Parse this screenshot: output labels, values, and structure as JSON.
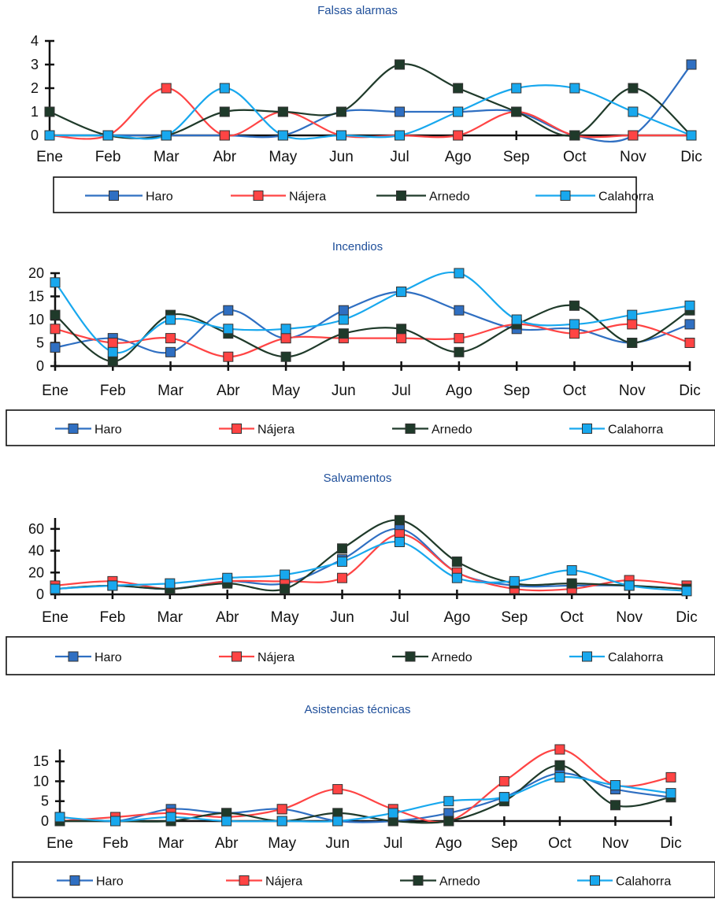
{
  "months": [
    "Ene",
    "Feb",
    "Mar",
    "Abr",
    "May",
    "Jun",
    "Jul",
    "Ago",
    "Sep",
    "Oct",
    "Nov",
    "Dic"
  ],
  "legend": [
    {
      "name": "Haro",
      "color": "#2f6fc2"
    },
    {
      "name": "Nájera",
      "color": "#ff4444"
    },
    {
      "name": "Arnedo",
      "color": "#1f3a2a"
    },
    {
      "name": "Calahorra",
      "color": "#18a8ee"
    }
  ],
  "chart_data": [
    {
      "type": "line",
      "title": "Falsas alarmas",
      "categories": [
        "Ene",
        "Feb",
        "Mar",
        "Abr",
        "May",
        "Jun",
        "Jul",
        "Ago",
        "Sep",
        "Oct",
        "Nov",
        "Dic"
      ],
      "ylim": [
        0,
        4
      ],
      "yticks": [
        0,
        1,
        2,
        3,
        4
      ],
      "series": [
        {
          "name": "Haro",
          "values": [
            0,
            0,
            0,
            0,
            0,
            1,
            1,
            1,
            1,
            0,
            0,
            3
          ]
        },
        {
          "name": "Nájera",
          "values": [
            0,
            0,
            2,
            0,
            1,
            0,
            0,
            0,
            1,
            0,
            0,
            0
          ]
        },
        {
          "name": "Arnedo",
          "values": [
            1,
            0,
            0,
            1,
            1,
            1,
            3,
            2,
            1,
            0,
            2,
            0
          ]
        },
        {
          "name": "Calahorra",
          "values": [
            0,
            0,
            0,
            2,
            0,
            0,
            0,
            1,
            2,
            2,
            1,
            0
          ]
        }
      ]
    },
    {
      "type": "line",
      "title": "Incendios",
      "categories": [
        "Ene",
        "Feb",
        "Mar",
        "Abr",
        "May",
        "Jun",
        "Jul",
        "Ago",
        "Sep",
        "Oct",
        "Nov",
        "Dic"
      ],
      "ylim": [
        0,
        20
      ],
      "yticks": [
        0,
        5,
        10,
        15,
        20
      ],
      "series": [
        {
          "name": "Haro",
          "values": [
            4,
            6,
            3,
            12,
            6,
            12,
            16,
            12,
            8,
            8,
            5,
            9
          ]
        },
        {
          "name": "Nájera",
          "values": [
            8,
            5,
            6,
            2,
            6,
            6,
            6,
            6,
            9,
            7,
            9,
            5
          ]
        },
        {
          "name": "Arnedo",
          "values": [
            11,
            1,
            11,
            7,
            2,
            7,
            8,
            3,
            9,
            13,
            5,
            12
          ]
        },
        {
          "name": "Calahorra",
          "values": [
            18,
            3,
            10,
            8,
            8,
            10,
            16,
            20,
            10,
            9,
            11,
            13
          ]
        }
      ]
    },
    {
      "type": "line",
      "title": "Salvamentos",
      "categories": [
        "Ene",
        "Feb",
        "Mar",
        "Abr",
        "May",
        "Jun",
        "Jul",
        "Ago",
        "Sep",
        "Oct",
        "Nov",
        "Dic"
      ],
      "ylim": [
        0,
        70
      ],
      "yticks": [
        0,
        20,
        40,
        60
      ],
      "series": [
        {
          "name": "Haro",
          "values": [
            5,
            8,
            5,
            12,
            10,
            32,
            60,
            20,
            8,
            8,
            8,
            5
          ]
        },
        {
          "name": "Nájera",
          "values": [
            8,
            12,
            5,
            12,
            12,
            15,
            55,
            20,
            5,
            5,
            13,
            8
          ]
        },
        {
          "name": "Arnedo",
          "values": [
            5,
            8,
            5,
            10,
            5,
            42,
            68,
            30,
            10,
            10,
            8,
            5
          ]
        },
        {
          "name": "Calahorra",
          "values": [
            5,
            8,
            10,
            15,
            18,
            30,
            48,
            15,
            12,
            22,
            8,
            3
          ]
        }
      ]
    },
    {
      "type": "line",
      "title": "Asistencias técnicas",
      "categories": [
        "Ene",
        "Feb",
        "Mar",
        "Abr",
        "May",
        "Jun",
        "Jul",
        "Ago",
        "Sep",
        "Oct",
        "Nov",
        "Dic"
      ],
      "ylim": [
        0,
        18
      ],
      "yticks": [
        0,
        5,
        10,
        15
      ],
      "series": [
        {
          "name": "Haro",
          "values": [
            1,
            0,
            3,
            2,
            3,
            0,
            0,
            2,
            6,
            12,
            8,
            6
          ]
        },
        {
          "name": "Nájera",
          "values": [
            0,
            1,
            2,
            1,
            3,
            8,
            3,
            0,
            10,
            18,
            9,
            11
          ]
        },
        {
          "name": "Arnedo",
          "values": [
            0,
            0,
            0,
            2,
            0,
            2,
            0,
            0,
            5,
            14,
            4,
            6
          ]
        },
        {
          "name": "Calahorra",
          "values": [
            1,
            0,
            1,
            0,
            0,
            0,
            2,
            5,
            6,
            11,
            9,
            7
          ]
        }
      ]
    }
  ]
}
